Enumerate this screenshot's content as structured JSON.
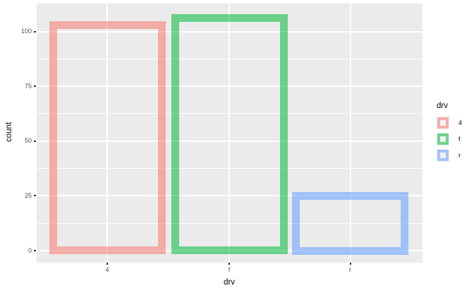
{
  "figure": {
    "background": "#FFFFFF",
    "panel_background": "#EBEBEB",
    "gridline_color": "#FFFFFF",
    "tick_label_color": "#4D4D4D",
    "axis_title_color": "#000000",
    "legend_key_background": "#F2F2F2"
  },
  "chart_data": {
    "type": "bar",
    "style": "hollow-bars-thick-semi-transparent-outline (ggplot2 theme_grey)",
    "title": "",
    "xlabel": "drv",
    "ylabel": "count",
    "categories": [
      "4",
      "f",
      "r"
    ],
    "values": [
      103,
      106,
      25
    ],
    "series_base_colors": [
      "#F8766D",
      "#00BA38",
      "#619CFF"
    ],
    "bar_border_colors": [
      "rgba(248,118,109,0.55)",
      "rgba(0,186,56,0.55)",
      "rgba(97,156,255,0.55)"
    ],
    "y_ticks": [
      0,
      25,
      50,
      75,
      100
    ],
    "y_tick_labels": [
      "0",
      "25",
      "50",
      "75",
      "100"
    ],
    "y_minor_ticks": [
      12.5,
      37.5,
      62.5,
      87.5
    ],
    "ylim": [
      -5.6,
      111.9
    ],
    "grid": "horizontal major+minor white lines, vertical major white line per category",
    "legend": {
      "title": "drv",
      "position": "right",
      "entries": [
        {
          "label": "4",
          "color": "rgba(248,118,109,0.55)"
        },
        {
          "label": "f",
          "color": "rgba(0,186,56,0.55)"
        },
        {
          "label": "r",
          "color": "rgba(97,156,255,0.55)"
        }
      ]
    }
  }
}
